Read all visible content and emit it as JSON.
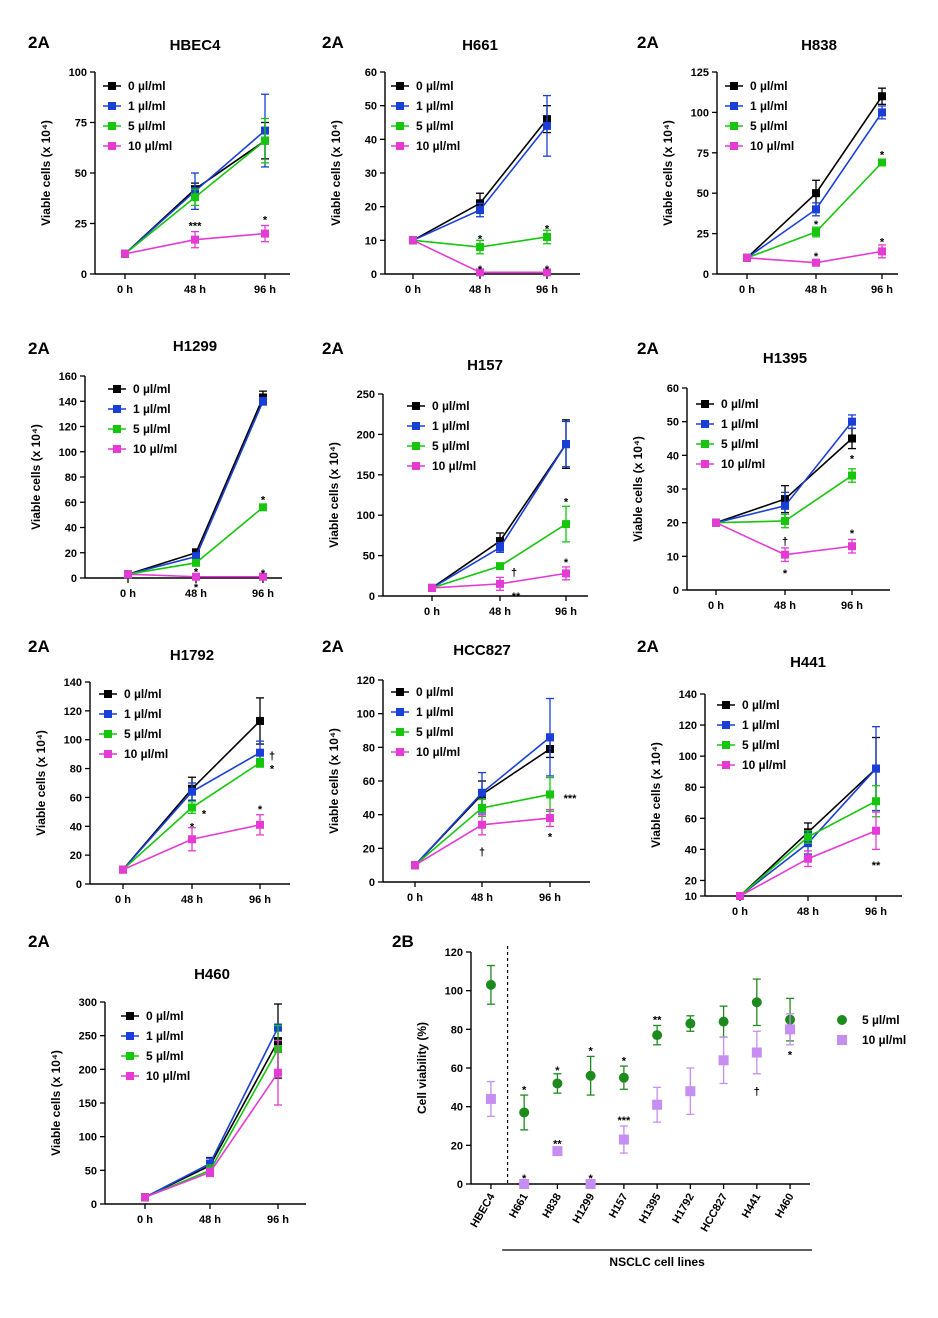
{
  "chart_data": [
    {
      "panel_label": "2A",
      "title": "HBEC4",
      "type": "line",
      "ylabel": "Viable cells (x 10⁴)",
      "ylim": [
        0,
        100
      ],
      "yticks": [
        0,
        25,
        50,
        75,
        100
      ],
      "categories": [
        "0 h",
        "48 h",
        "96 h"
      ],
      "legend_position": "top-left",
      "series": [
        {
          "name": "0 µl/ml",
          "color": "#000000",
          "values": [
            10,
            42,
            66
          ],
          "errors": [
            0,
            3,
            9
          ]
        },
        {
          "name": "1 µl/ml",
          "color": "#1a3fd6",
          "values": [
            10,
            41,
            71
          ],
          "errors": [
            0,
            9,
            18
          ]
        },
        {
          "name": "5 µl/ml",
          "color": "#16c60c",
          "values": [
            10,
            38,
            66
          ],
          "errors": [
            0,
            4,
            11
          ]
        },
        {
          "name": "10 µl/ml",
          "color": "#e33bd3",
          "values": [
            10,
            17,
            20
          ],
          "errors": [
            0,
            4,
            4
          ]
        }
      ],
      "annotations": [
        {
          "category": 1,
          "y": 24,
          "text": "***"
        },
        {
          "category": 2,
          "y": 27,
          "text": "*"
        }
      ]
    },
    {
      "panel_label": "2A",
      "title": "H661",
      "type": "line",
      "ylabel": "Viable cells (x 10⁴)",
      "ylim": [
        0,
        60
      ],
      "yticks": [
        0,
        10,
        20,
        30,
        40,
        50,
        60
      ],
      "categories": [
        "0 h",
        "48 h",
        "96 h"
      ],
      "legend_position": "top-left",
      "series": [
        {
          "name": "0 µl/ml",
          "color": "#000000",
          "values": [
            10,
            21,
            46
          ],
          "errors": [
            0,
            3,
            4
          ]
        },
        {
          "name": "1 µl/ml",
          "color": "#1a3fd6",
          "values": [
            10,
            19,
            44
          ],
          "errors": [
            0,
            2,
            9
          ]
        },
        {
          "name": "5 µl/ml",
          "color": "#16c60c",
          "values": [
            10,
            8,
            11
          ],
          "errors": [
            0,
            2,
            2
          ]
        },
        {
          "name": "10 µl/ml",
          "color": "#e33bd3",
          "values": [
            10,
            0.5,
            0.5
          ],
          "errors": [
            0,
            0,
            0
          ]
        }
      ],
      "annotations": [
        {
          "category": 1,
          "y": 10.5,
          "text": "*"
        },
        {
          "category": 2,
          "y": 13.5,
          "text": "*"
        },
        {
          "category": 1,
          "y": 1.5,
          "text": "*"
        },
        {
          "category": 2,
          "y": 1.5,
          "text": "*"
        }
      ]
    },
    {
      "panel_label": "2A",
      "title": "H838",
      "type": "line",
      "ylabel": "Viable cells (x 10⁴)",
      "ylim": [
        0,
        125
      ],
      "yticks": [
        0,
        25,
        50,
        75,
        100,
        125
      ],
      "categories": [
        "0 h",
        "48 h",
        "96 h"
      ],
      "legend_position": "top-left",
      "series": [
        {
          "name": "0 µl/ml",
          "color": "#000000",
          "values": [
            10,
            50,
            110
          ],
          "errors": [
            0,
            8,
            5
          ]
        },
        {
          "name": "1 µl/ml",
          "color": "#1a3fd6",
          "values": [
            10,
            40,
            100
          ],
          "errors": [
            0,
            4,
            4
          ]
        },
        {
          "name": "5 µl/ml",
          "color": "#16c60c",
          "values": [
            10,
            26,
            69
          ],
          "errors": [
            0,
            3,
            2
          ]
        },
        {
          "name": "10 µl/ml",
          "color": "#e33bd3",
          "values": [
            10,
            7,
            14
          ],
          "errors": [
            0,
            2,
            4
          ]
        }
      ],
      "annotations": [
        {
          "category": 1,
          "y": 31,
          "text": "*"
        },
        {
          "category": 2,
          "y": 74,
          "text": "*"
        },
        {
          "category": 1,
          "y": 11,
          "text": "*"
        },
        {
          "category": 2,
          "y": 20,
          "text": "*"
        }
      ]
    },
    {
      "panel_label": "2A",
      "title": "H1299",
      "type": "line",
      "ylabel": "Viable cells (x 10⁴)",
      "ylim": [
        0,
        160
      ],
      "yticks": [
        0,
        20,
        40,
        60,
        80,
        100,
        120,
        140,
        160
      ],
      "categories": [
        "0 h",
        "48 h",
        "96 h"
      ],
      "legend_position": "top-left",
      "series": [
        {
          "name": "0 µl/ml",
          "color": "#000000",
          "values": [
            3,
            20,
            143
          ],
          "errors": [
            0,
            3,
            5
          ]
        },
        {
          "name": "1 µl/ml",
          "color": "#1a3fd6",
          "values": [
            3,
            17,
            140
          ],
          "errors": [
            0,
            3,
            3
          ]
        },
        {
          "name": "5 µl/ml",
          "color": "#16c60c",
          "values": [
            3,
            12,
            56
          ],
          "errors": [
            0,
            2,
            2
          ]
        },
        {
          "name": "10 µl/ml",
          "color": "#e33bd3",
          "values": [
            3,
            1,
            1
          ],
          "errors": [
            0,
            0,
            0
          ]
        }
      ],
      "annotations": [
        {
          "category": 1,
          "y": 5,
          "text": "*"
        },
        {
          "category": 2,
          "y": 62,
          "text": "*"
        },
        {
          "category": 1,
          "y": -7,
          "text": "*"
        },
        {
          "category": 2,
          "y": 4,
          "text": "*"
        }
      ]
    },
    {
      "panel_label": "2A",
      "title": "H157",
      "type": "line",
      "ylabel": "Viable cells (x 10⁴)",
      "ylim": [
        0,
        250
      ],
      "yticks": [
        0,
        50,
        100,
        150,
        200,
        250
      ],
      "categories": [
        "0 h",
        "48 h",
        "96 h"
      ],
      "legend_position": "top-left",
      "series": [
        {
          "name": "0 µl/ml",
          "color": "#000000",
          "values": [
            10,
            68,
            188
          ],
          "errors": [
            0,
            10,
            30
          ]
        },
        {
          "name": "1 µl/ml",
          "color": "#1a3fd6",
          "values": [
            10,
            60,
            188
          ],
          "errors": [
            0,
            6,
            28
          ]
        },
        {
          "name": "5 µl/ml",
          "color": "#16c60c",
          "values": [
            10,
            37,
            89
          ],
          "errors": [
            0,
            3,
            22
          ]
        },
        {
          "name": "10 µl/ml",
          "color": "#e33bd3",
          "values": [
            10,
            15,
            28
          ],
          "errors": [
            0,
            8,
            8
          ]
        }
      ],
      "annotations": [
        {
          "category": 1,
          "y": 30,
          "text": "†",
          "dx": 14
        },
        {
          "category": 2,
          "y": 117,
          "text": "*"
        },
        {
          "category": 1,
          "y": 0,
          "text": "**",
          "dx": 16
        },
        {
          "category": 2,
          "y": 42,
          "text": "*"
        }
      ]
    },
    {
      "panel_label": "2A",
      "title": "H1395",
      "type": "line",
      "ylabel": "Viable cells (x 10⁴)",
      "ylim": [
        0,
        60
      ],
      "yticks": [
        0,
        10,
        20,
        30,
        40,
        50,
        60
      ],
      "categories": [
        "0 h",
        "48 h",
        "96 h"
      ],
      "legend_position": "top-left",
      "series": [
        {
          "name": "0 µl/ml",
          "color": "#000000",
          "values": [
            20,
            27,
            45
          ],
          "errors": [
            0,
            4,
            3
          ]
        },
        {
          "name": "1 µl/ml",
          "color": "#1a3fd6",
          "values": [
            20,
            25,
            50
          ],
          "errors": [
            0,
            4,
            2
          ]
        },
        {
          "name": "5 µl/ml",
          "color": "#16c60c",
          "values": [
            20,
            20.5,
            34
          ],
          "errors": [
            0,
            2,
            2
          ]
        },
        {
          "name": "10 µl/ml",
          "color": "#e33bd3",
          "values": [
            20,
            10.5,
            13
          ],
          "errors": [
            0,
            2,
            2
          ]
        }
      ],
      "annotations": [
        {
          "category": 1,
          "y": 14.5,
          "text": "†"
        },
        {
          "category": 2,
          "y": 39,
          "text": "*"
        },
        {
          "category": 1,
          "y": 5,
          "text": "*"
        },
        {
          "category": 2,
          "y": 17,
          "text": "*"
        }
      ]
    },
    {
      "panel_label": "2A",
      "title": "H1792",
      "type": "line",
      "ylabel": "Viable cells (x 10⁴)",
      "ylim": [
        0,
        140
      ],
      "yticks": [
        0,
        20,
        40,
        60,
        80,
        100,
        120,
        140
      ],
      "categories": [
        "0 h",
        "48 h",
        "96 h"
      ],
      "legend_position": "top-left",
      "series": [
        {
          "name": "0 µl/ml",
          "color": "#000000",
          "values": [
            10,
            66,
            113
          ],
          "errors": [
            0,
            8,
            16
          ]
        },
        {
          "name": "1 µl/ml",
          "color": "#1a3fd6",
          "values": [
            10,
            64,
            91
          ],
          "errors": [
            0,
            6,
            8
          ]
        },
        {
          "name": "5 µl/ml",
          "color": "#16c60c",
          "values": [
            10,
            53,
            84
          ],
          "errors": [
            0,
            4,
            3
          ]
        },
        {
          "name": "10 µl/ml",
          "color": "#e33bd3",
          "values": [
            10,
            31,
            41
          ],
          "errors": [
            0,
            8,
            7
          ]
        }
      ],
      "annotations": [
        {
          "category": 1,
          "y": 49,
          "text": "*",
          "dx": 12
        },
        {
          "category": 2,
          "y": 89,
          "text": "†",
          "dx": 12
        },
        {
          "category": 1,
          "y": 40,
          "text": "*"
        },
        {
          "category": 2,
          "y": 80,
          "text": "*",
          "dx": 12
        },
        {
          "category": 2,
          "y": 52,
          "text": "*"
        }
      ]
    },
    {
      "panel_label": "2A",
      "title": "HCC827",
      "type": "line",
      "ylabel": "Viable cells (x 10⁴)",
      "ylim": [
        0,
        120
      ],
      "yticks": [
        0,
        20,
        40,
        60,
        80,
        100,
        120
      ],
      "categories": [
        "0 h",
        "48 h",
        "96 h"
      ],
      "legend_position": "top-left",
      "series": [
        {
          "name": "0 µl/ml",
          "color": "#000000",
          "values": [
            10,
            52,
            79
          ],
          "errors": [
            0,
            8,
            5
          ]
        },
        {
          "name": "1 µl/ml",
          "color": "#1a3fd6",
          "values": [
            10,
            53,
            86
          ],
          "errors": [
            0,
            12,
            23
          ]
        },
        {
          "name": "5 µl/ml",
          "color": "#16c60c",
          "values": [
            10,
            44,
            52
          ],
          "errors": [
            0,
            5,
            10
          ]
        },
        {
          "name": "10 µl/ml",
          "color": "#e33bd3",
          "values": [
            10,
            34,
            38
          ],
          "errors": [
            0,
            6,
            5
          ]
        }
      ],
      "annotations": [
        {
          "category": 2,
          "y": 50,
          "text": "***",
          "dx": 20
        },
        {
          "category": 1,
          "y": 18,
          "text": "†"
        },
        {
          "category": 2,
          "y": 27,
          "text": "*"
        }
      ]
    },
    {
      "panel_label": "2A",
      "title": "H441",
      "type": "line",
      "ylabel": "Viable cells (x 10⁴)",
      "ylim": [
        10,
        140
      ],
      "yticks": [
        10,
        20,
        40,
        60,
        80,
        100,
        120,
        140
      ],
      "categories": [
        "0 h",
        "48 h",
        "96 h"
      ],
      "legend_position": "top-left",
      "series": [
        {
          "name": "0 µl/ml",
          "color": "#000000",
          "values": [
            10,
            51,
            92
          ],
          "errors": [
            0,
            6,
            20
          ]
        },
        {
          "name": "1 µl/ml",
          "color": "#1a3fd6",
          "values": [
            10,
            44,
            92
          ],
          "errors": [
            0,
            7,
            27
          ]
        },
        {
          "name": "5 µl/ml",
          "color": "#16c60c",
          "values": [
            10,
            48,
            71
          ],
          "errors": [
            0,
            4,
            10
          ]
        },
        {
          "name": "10 µl/ml",
          "color": "#e33bd3",
          "values": [
            10,
            34,
            52
          ],
          "errors": [
            0,
            5,
            12
          ]
        }
      ],
      "annotations": [
        {
          "category": 2,
          "y": 30,
          "text": "**"
        }
      ]
    },
    {
      "panel_label": "2A",
      "title": "H460",
      "type": "line",
      "ylabel": "Viable cells (x 10⁴)",
      "ylim": [
        0,
        300
      ],
      "yticks": [
        0,
        50,
        100,
        150,
        200,
        250,
        300
      ],
      "categories": [
        "0 h",
        "48 h",
        "96 h"
      ],
      "legend_position": "top-left",
      "series": [
        {
          "name": "0 µl/ml",
          "color": "#000000",
          "values": [
            10,
            57,
            242
          ],
          "errors": [
            0,
            12,
            55
          ]
        },
        {
          "name": "1 µl/ml",
          "color": "#1a3fd6",
          "values": [
            10,
            60,
            262
          ],
          "errors": [
            0,
            8,
            5
          ]
        },
        {
          "name": "5 µl/ml",
          "color": "#16c60c",
          "values": [
            10,
            50,
            230
          ],
          "errors": [
            0,
            8,
            35
          ]
        },
        {
          "name": "10 µl/ml",
          "color": "#e33bd3",
          "values": [
            10,
            47,
            195
          ],
          "errors": [
            0,
            6,
            48
          ]
        }
      ],
      "annotations": []
    },
    {
      "panel_label": "2B",
      "type": "scatter",
      "ylabel": "Cell viability (%)",
      "xlabel": "NSCLC cell lines",
      "ylim": [
        0,
        120
      ],
      "yticks": [
        0,
        20,
        40,
        60,
        80,
        100,
        120
      ],
      "categories": [
        "HBEC4",
        "H661",
        "H838",
        "H1299",
        "H157",
        "H1395",
        "H1792",
        "HCC827",
        "H441",
        "H460"
      ],
      "legend_position": "right",
      "series": [
        {
          "name": "5 µl/ml",
          "color": "#1e8a1e",
          "marker": "circle",
          "values": [
            103,
            37,
            52,
            56,
            55,
            77,
            83,
            84,
            94,
            85
          ],
          "errors": [
            10,
            9,
            5,
            10,
            6,
            5,
            4,
            8,
            12,
            11
          ]
        },
        {
          "name": "10 µl/ml",
          "color": "#c58ef0",
          "marker": "square",
          "values": [
            44,
            0,
            17,
            0,
            23,
            41,
            48,
            64,
            68,
            80
          ],
          "errors": [
            9,
            0,
            1,
            0,
            7,
            9,
            12,
            12,
            11,
            8
          ]
        }
      ],
      "annotations": [
        {
          "category": 1,
          "y": 49,
          "text": "*"
        },
        {
          "category": 1,
          "y": 3,
          "text": "*"
        },
        {
          "category": 2,
          "y": 59,
          "text": "*"
        },
        {
          "category": 2,
          "y": 21,
          "text": "**"
        },
        {
          "category": 3,
          "y": 69,
          "text": "*"
        },
        {
          "category": 3,
          "y": 3,
          "text": "*"
        },
        {
          "category": 4,
          "y": 64,
          "text": "*"
        },
        {
          "category": 4,
          "y": 33,
          "text": "***"
        },
        {
          "category": 5,
          "y": 85,
          "text": "**"
        },
        {
          "category": 8,
          "y": 48,
          "text": "†"
        },
        {
          "category": 9,
          "y": 67,
          "text": "*"
        }
      ]
    }
  ]
}
